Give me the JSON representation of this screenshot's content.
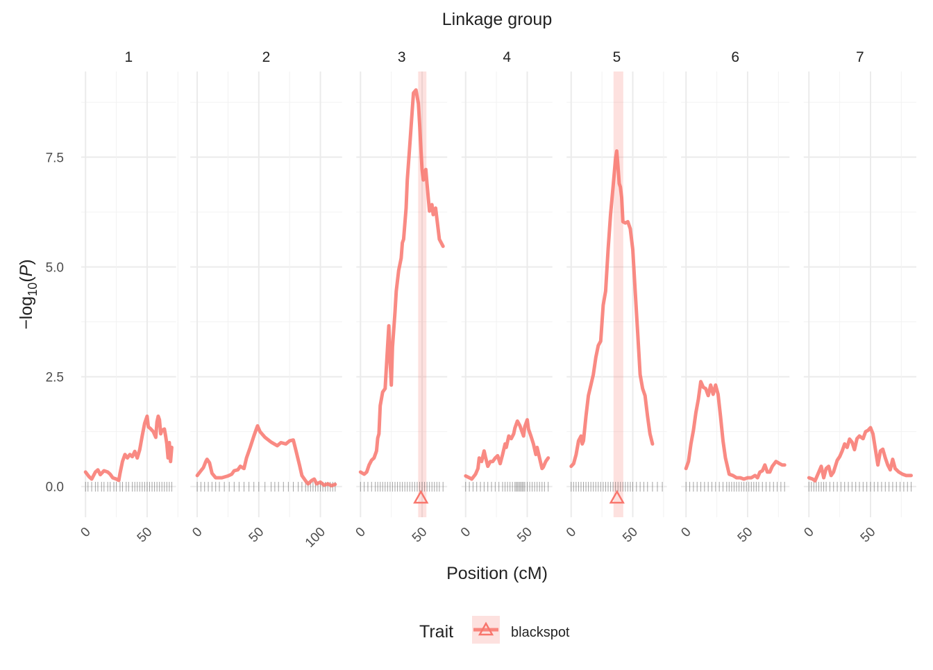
{
  "chart_data": {
    "type": "line",
    "title": "Linkage group",
    "x_label": "Position (cM)",
    "y_label_parts": [
      "−log",
      "10",
      "(",
      "P",
      ")"
    ],
    "legend_title": "Trait",
    "legend": "bottom",
    "series_name": "blackspot",
    "color": "#F8766D",
    "grid": true,
    "ylim": [
      -0.7,
      9.45
    ],
    "yticks": [
      {
        "value": 0,
        "label": "0.0"
      },
      2.5,
      {
        "value": 5,
        "label": "5.0"
      },
      7.5
    ],
    "yminor": [
      1.25,
      3.75,
      6.25,
      8.75
    ],
    "facets": [
      {
        "label": "1",
        "xlim": [
          -3.5,
          73.5
        ],
        "xticks": [
          0,
          50
        ],
        "xminor": [
          25,
          75
        ],
        "x": [
          0,
          3,
          5,
          8,
          10,
          12,
          15,
          18,
          20,
          22,
          25,
          27,
          28,
          30,
          32,
          34,
          36,
          38,
          40,
          42,
          44,
          46,
          48,
          50,
          51,
          53,
          55,
          57,
          58,
          59,
          60,
          61,
          62,
          64,
          65,
          66,
          67,
          68,
          69,
          70
        ],
        "values": [
          0.33,
          0.22,
          0.17,
          0.33,
          0.38,
          0.27,
          0.36,
          0.33,
          0.28,
          0.2,
          0.17,
          0.14,
          0.3,
          0.57,
          0.73,
          0.65,
          0.73,
          0.68,
          0.8,
          0.65,
          0.84,
          1.15,
          1.44,
          1.6,
          1.36,
          1.31,
          1.25,
          1.12,
          1.47,
          1.6,
          1.52,
          1.2,
          1.28,
          1.31,
          1.15,
          0.97,
          0.65,
          1.0,
          0.57,
          0.89
        ],
        "markers": [
          0,
          2,
          5,
          8,
          10,
          13,
          15,
          18,
          20,
          23,
          25,
          28,
          30,
          33,
          35,
          38,
          40,
          42,
          44,
          46,
          48,
          50,
          52,
          54,
          56,
          58,
          60,
          62,
          64,
          66,
          68,
          70
        ]
      },
      {
        "label": "2",
        "xlim": [
          -5.6,
          117.6
        ],
        "xticks": [
          0,
          50,
          100
        ],
        "xminor": [
          25,
          75
        ],
        "x": [
          0,
          3,
          5,
          7,
          8,
          10,
          12,
          15,
          20,
          25,
          28,
          30,
          33,
          35,
          38,
          40,
          43,
          46,
          48,
          49,
          51,
          55,
          60,
          65,
          68,
          72,
          75,
          78,
          80,
          83,
          85,
          88,
          90,
          93,
          95,
          97,
          100,
          103,
          106,
          109,
          112
        ],
        "values": [
          0.25,
          0.36,
          0.43,
          0.57,
          0.62,
          0.54,
          0.3,
          0.2,
          0.2,
          0.24,
          0.28,
          0.36,
          0.38,
          0.46,
          0.41,
          0.65,
          0.89,
          1.15,
          1.31,
          1.38,
          1.25,
          1.12,
          1.01,
          0.93,
          1.0,
          0.97,
          1.04,
          1.06,
          0.84,
          0.49,
          0.25,
          0.13,
          0.06,
          0.14,
          0.17,
          0.06,
          0.1,
          0.03,
          0.06,
          0.02,
          0.05
        ],
        "markers": [
          0,
          3,
          6,
          9,
          12,
          15,
          18,
          22,
          26,
          30,
          34,
          38,
          42,
          46,
          50,
          55,
          60,
          63,
          66,
          70,
          74,
          78,
          82,
          85,
          88,
          90,
          92,
          94,
          96,
          98,
          100,
          102,
          104,
          106,
          108,
          110,
          112
        ]
      },
      {
        "label": "3",
        "xlim": [
          -3.4,
          70.4
        ],
        "xticks": [
          0,
          50
        ],
        "xminor": [
          25
        ],
        "x": [
          0,
          3,
          5,
          7,
          9,
          11,
          13,
          14,
          15,
          16,
          18,
          20,
          22,
          23,
          24,
          25,
          26,
          28,
          29,
          31,
          33,
          34,
          35,
          37,
          38,
          40,
          42,
          43,
          45,
          47,
          48,
          49,
          50,
          51,
          52,
          53,
          54,
          55,
          56,
          58,
          59,
          61,
          63,
          64,
          67
        ],
        "values": [
          0.33,
          0.28,
          0.33,
          0.49,
          0.6,
          0.65,
          0.81,
          1.1,
          1.2,
          1.84,
          2.15,
          2.23,
          3.18,
          3.66,
          2.86,
          2.31,
          3.18,
          3.97,
          4.45,
          4.92,
          5.2,
          5.55,
          5.63,
          6.34,
          6.98,
          7.77,
          8.56,
          8.96,
          9.03,
          8.72,
          8.24,
          7.69,
          7.22,
          6.98,
          7.14,
          7.22,
          6.9,
          6.58,
          6.27,
          6.42,
          6.19,
          6.34,
          5.87,
          5.63,
          5.47
        ],
        "markers": [
          0,
          3,
          6,
          9,
          12,
          14,
          16,
          18,
          20,
          22,
          24,
          26,
          28,
          30,
          32,
          34,
          36,
          38,
          40,
          42,
          44,
          46,
          48,
          50,
          52,
          54,
          56,
          58,
          60,
          62,
          64,
          67
        ],
        "qtl": {
          "position": 49,
          "lower": 46.8,
          "upper": 53.5
        }
      },
      {
        "label": "4",
        "xlim": [
          -3.4,
          70.4
        ],
        "xticks": [
          0,
          50
        ],
        "xminor": [
          25
        ],
        "x": [
          0,
          3,
          5,
          8,
          10,
          11,
          13,
          15,
          16,
          18,
          20,
          22,
          24,
          26,
          28,
          30,
          32,
          33,
          35,
          37,
          39,
          40,
          42,
          44,
          45,
          47,
          48,
          50,
          51,
          53,
          55,
          57,
          58,
          60,
          62,
          63,
          65,
          67
        ],
        "values": [
          0.24,
          0.2,
          0.17,
          0.28,
          0.41,
          0.65,
          0.57,
          0.81,
          0.68,
          0.46,
          0.57,
          0.57,
          0.65,
          0.7,
          0.52,
          0.73,
          0.97,
          0.89,
          1.15,
          1.09,
          1.2,
          1.33,
          1.49,
          1.39,
          1.31,
          1.15,
          1.36,
          1.52,
          1.31,
          1.15,
          0.97,
          0.73,
          0.89,
          0.65,
          0.41,
          0.44,
          0.57,
          0.65
        ],
        "markers": [
          0,
          3,
          6,
          9,
          12,
          15,
          18,
          21,
          24,
          27,
          30,
          32,
          34,
          36,
          38,
          40,
          41,
          42,
          43,
          44,
          45,
          46,
          47,
          48,
          50,
          52,
          54,
          56,
          58,
          60,
          62,
          64,
          67
        ]
      },
      {
        "label": "5",
        "xlim": [
          -3.7,
          77.7
        ],
        "xticks": [
          0,
          50
        ],
        "xminor": [
          25,
          75
        ],
        "x": [
          0,
          2,
          4,
          6,
          8,
          9,
          10,
          12,
          14,
          16,
          18,
          20,
          22,
          24,
          26,
          28,
          30,
          32,
          34,
          36,
          37,
          38,
          39,
          40,
          41,
          42,
          44,
          46,
          48,
          50,
          52,
          54,
          56,
          58,
          60,
          62,
          64,
          66,
          70,
          74
        ],
        "values": [
          0.46,
          0.52,
          0.73,
          1.04,
          1.15,
          0.97,
          1.04,
          1.6,
          2.07,
          2.31,
          2.55,
          2.94,
          3.21,
          3.31,
          4.13,
          4.45,
          5.4,
          6.19,
          6.82,
          7.45,
          7.64,
          7.29,
          6.9,
          6.82,
          6.58,
          6.03,
          6.0,
          6.03,
          5.87,
          5.4,
          4.45,
          3.5,
          2.55,
          2.23,
          2.07,
          1.6,
          1.2,
          0.97,
          null,
          null
        ],
        "markers": [
          0,
          2,
          4,
          6,
          8,
          10,
          12,
          14,
          16,
          18,
          20,
          22,
          24,
          26,
          28,
          30,
          32,
          34,
          36,
          38,
          40,
          42,
          44,
          46,
          48,
          50,
          53,
          56,
          59,
          62,
          66,
          70,
          74
        ],
        "qtl": {
          "position": 37.2,
          "lower": 34.4,
          "upper": 42.3
        }
      },
      {
        "label": "6",
        "xlim": [
          -4,
          84
        ],
        "xticks": [
          0,
          50
        ],
        "xminor": [
          25,
          75
        ],
        "x": [
          0,
          2,
          4,
          6,
          8,
          10,
          12,
          14,
          16,
          18,
          20,
          22,
          24,
          26,
          28,
          30,
          32,
          35,
          38,
          41,
          44,
          47,
          50,
          53,
          56,
          58,
          60,
          62,
          64,
          66,
          68,
          70,
          73,
          76,
          78,
          80
        ],
        "values": [
          0.41,
          0.57,
          0.97,
          1.28,
          1.68,
          1.99,
          2.39,
          2.26,
          2.23,
          2.07,
          2.31,
          2.1,
          2.31,
          2.1,
          1.6,
          1.04,
          0.65,
          0.28,
          0.25,
          0.2,
          0.2,
          0.17,
          0.2,
          0.2,
          0.25,
          0.2,
          0.33,
          0.36,
          0.49,
          0.33,
          0.33,
          0.46,
          0.57,
          0.52,
          0.49,
          0.49
        ],
        "markers": [
          0,
          3,
          6,
          9,
          12,
          15,
          18,
          21,
          24,
          27,
          30,
          33,
          35,
          37,
          39,
          41,
          43,
          45,
          47,
          49,
          51,
          53,
          55,
          57,
          59,
          62,
          65,
          68,
          71,
          74,
          77,
          80
        ]
      },
      {
        "label": "7",
        "xlim": [
          -4.2,
          87.2
        ],
        "xticks": [
          0,
          50
        ],
        "xminor": [
          25,
          75
        ],
        "x": [
          0,
          3,
          5,
          8,
          10,
          12,
          14,
          16,
          18,
          20,
          23,
          25,
          27,
          29,
          31,
          33,
          35,
          37,
          39,
          41,
          44,
          46,
          48,
          50,
          52,
          54,
          56,
          58,
          60,
          62,
          64,
          66,
          68,
          70,
          73,
          76,
          79,
          83
        ],
        "values": [
          0.2,
          0.17,
          0.13,
          0.33,
          0.46,
          0.2,
          0.41,
          0.46,
          0.25,
          0.33,
          0.6,
          0.68,
          0.81,
          0.97,
          0.89,
          1.08,
          1.01,
          0.84,
          1.09,
          1.15,
          1.09,
          1.25,
          1.28,
          1.34,
          1.2,
          0.84,
          0.49,
          0.81,
          0.85,
          0.65,
          0.49,
          0.38,
          0.62,
          0.41,
          0.33,
          0.28,
          0.25,
          0.25
        ],
        "markers": [
          0,
          2,
          4,
          6,
          8,
          10,
          12,
          14,
          17,
          20,
          23,
          26,
          29,
          32,
          35,
          38,
          41,
          44,
          47,
          50,
          53,
          56,
          59,
          62,
          65,
          68,
          71,
          74,
          77,
          80,
          83
        ]
      }
    ]
  }
}
